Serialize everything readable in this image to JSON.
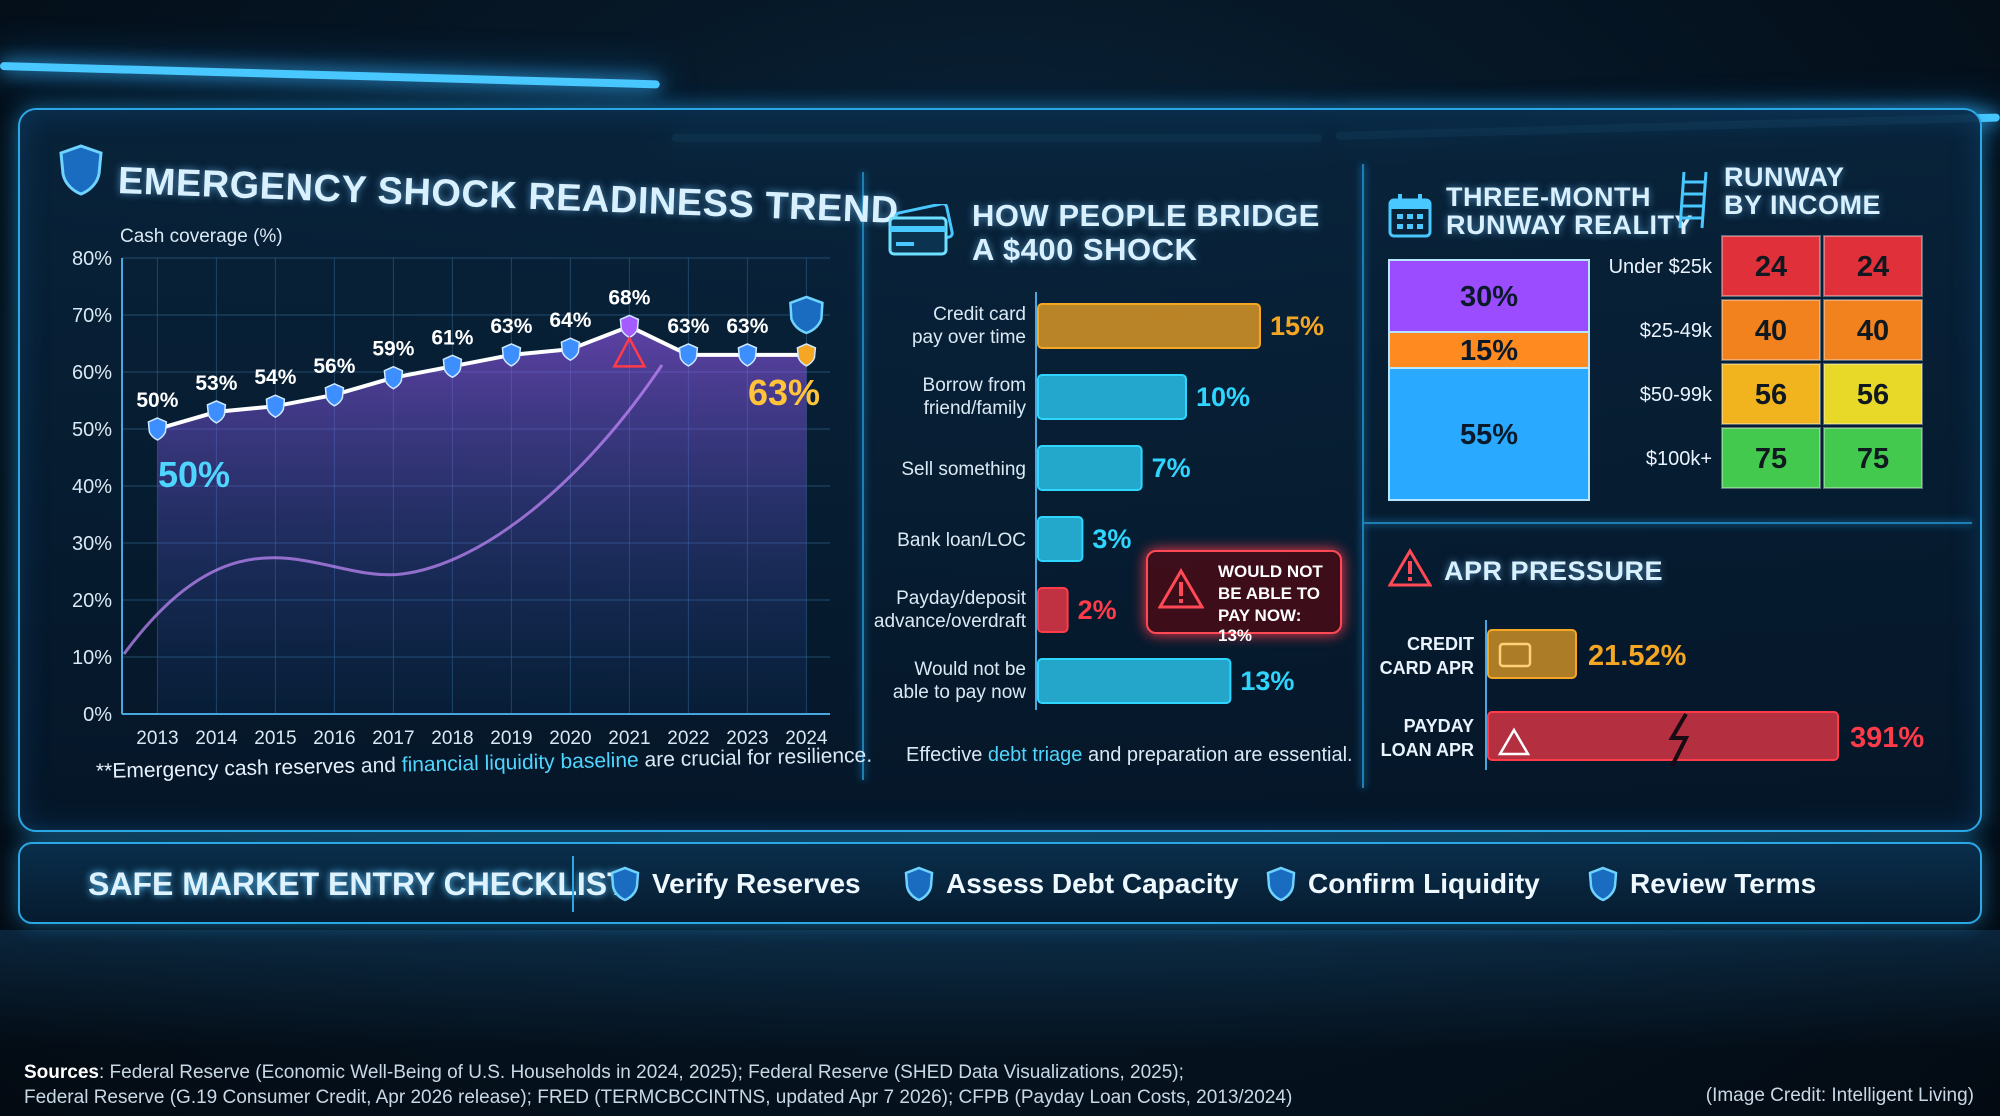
{
  "panel1": {
    "title": "EMERGENCY SHOCK READINESS TREND",
    "ylabel": "Cash coverage (%)",
    "start_label": "50%",
    "end_label": "63%",
    "footnote_a": "**Emergency cash reserves",
    "footnote_b": " and ",
    "footnote_c": "financial liquidity baseline",
    "footnote_d": " are crucial for resilience."
  },
  "panel2": {
    "title_line1": "HOW PEOPLE BRIDGE",
    "title_line2": "A $400 SHOCK",
    "callout_line1": "WOULD NOT",
    "callout_line2": "BE ABLE TO",
    "callout_line3": "PAY NOW: 13%",
    "footnote_a": "Effective ",
    "footnote_b": "debt triage",
    "footnote_c": " and preparation are essential."
  },
  "panel3": {
    "title_line1": "THREE-MONTH",
    "title_line2": "RUNWAY REALITY"
  },
  "panel4": {
    "title_line1": "RUNWAY",
    "title_line2": "BY INCOME"
  },
  "panel5": {
    "title": "APR PRESSURE"
  },
  "checklist": {
    "title": "SAFE MARKET ENTRY CHECKLIST",
    "items": [
      "Verify Reserves",
      "Assess Debt Capacity",
      "Confirm Liquidity",
      "Review Terms"
    ]
  },
  "footer": {
    "sources_label": "Sources",
    "sources_line1": ": Federal Reserve (Economic Well-Being of U.S. Households in 2024, 2025); Federal Reserve (SHED Data Visualizations, 2025);",
    "sources_line2": "Federal Reserve (G.19 Consumer Credit, Apr 2026 release); FRED (TERMCBCCINTNS, updated Apr 7 2026); CFPB (Payday Loan Costs, 2013/2024)",
    "credit": "(Image Credit: Intelligent Living)"
  },
  "colors": {
    "accent": "#49c8ff",
    "orange": "#f5a623",
    "red": "#ff3b4a",
    "purple": "#a45cff",
    "cyan": "#2ed6ff",
    "green": "#3ccf4e",
    "yellow": "#e3e829"
  },
  "chart_data": [
    {
      "type": "line",
      "x": [
        "2013",
        "2014",
        "2015",
        "2016",
        "2017",
        "2018",
        "2019",
        "2020",
        "2021",
        "2022",
        "2023",
        "2024"
      ],
      "series": [
        {
          "values": [
            50,
            53,
            54,
            56,
            59,
            61,
            63,
            64,
            68,
            63,
            63,
            63
          ]
        }
      ],
      "data_labels": [
        "50%",
        "53%",
        "54%",
        "56%",
        "59%",
        "61%",
        "63%",
        "64%",
        "68%",
        "63%",
        "63%",
        ""
      ],
      "ylabel": "Cash coverage (%)",
      "ylim": [
        0,
        80
      ],
      "yticks": [
        "0%",
        "10%",
        "20%",
        "30%",
        "40%",
        "50%",
        "60%",
        "70%",
        "80%"
      ],
      "grid": true
    },
    {
      "type": "bar",
      "orientation": "horizontal",
      "categories": [
        [
          "Credit card",
          "pay over time"
        ],
        [
          "Borrow from",
          "friend/family"
        ],
        [
          "Sell something"
        ],
        [
          "Bank loan/LOC"
        ],
        [
          "Payday/deposit",
          "advance/overdraft"
        ],
        [
          "Would not be",
          "able to pay now"
        ]
      ],
      "values": [
        15,
        10,
        7,
        3,
        2,
        13
      ],
      "labels": [
        "15%",
        "10%",
        "7%",
        "3%",
        "2%",
        "13%"
      ]
    },
    {
      "type": "bar",
      "stacked": true,
      "values": [
        30,
        15,
        55
      ],
      "labels": [
        "30%",
        "15%",
        "55%"
      ]
    },
    {
      "type": "heatmap",
      "rows": [
        "Under $25k",
        "$25-49k",
        "$50-99k",
        "$100k+"
      ],
      "values": [
        [
          24,
          24
        ],
        [
          40,
          40
        ],
        [
          56,
          56
        ],
        [
          75,
          75
        ]
      ]
    },
    {
      "type": "bar",
      "orientation": "horizontal",
      "categories": [
        [
          "CREDIT",
          "CARD APR"
        ],
        [
          "PAYDAY",
          "LOAN APR"
        ]
      ],
      "values": [
        21.52,
        391
      ],
      "labels": [
        "21.52%",
        "391%"
      ]
    }
  ]
}
